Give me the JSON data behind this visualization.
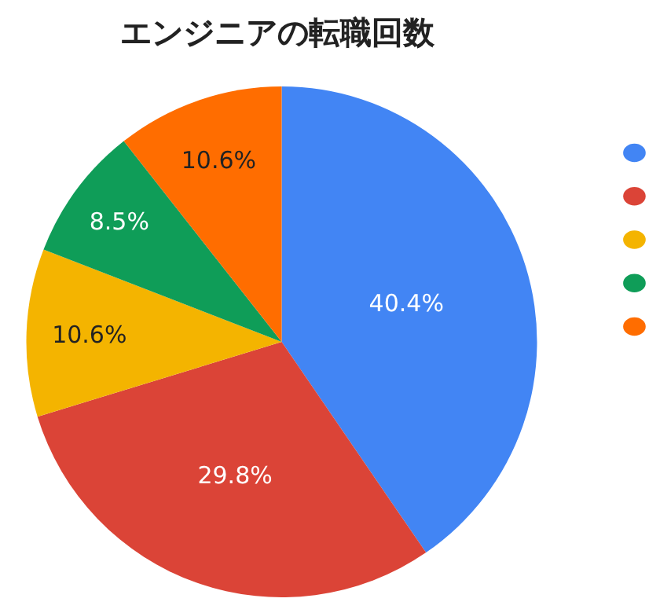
{
  "chart_data": {
    "type": "pie",
    "title": "エンジニアの転職回数",
    "categories": [
      null,
      null,
      null,
      null,
      null
    ],
    "values": [
      40.4,
      29.8,
      10.6,
      8.5,
      10.6
    ],
    "value_labels": [
      "40.4%",
      "29.8%",
      "10.6%",
      "8.5%",
      "10.6%"
    ],
    "colors": [
      "#4285f4",
      "#db4437",
      "#f4b400",
      "#0f9d58",
      "#ff6d00"
    ]
  }
}
